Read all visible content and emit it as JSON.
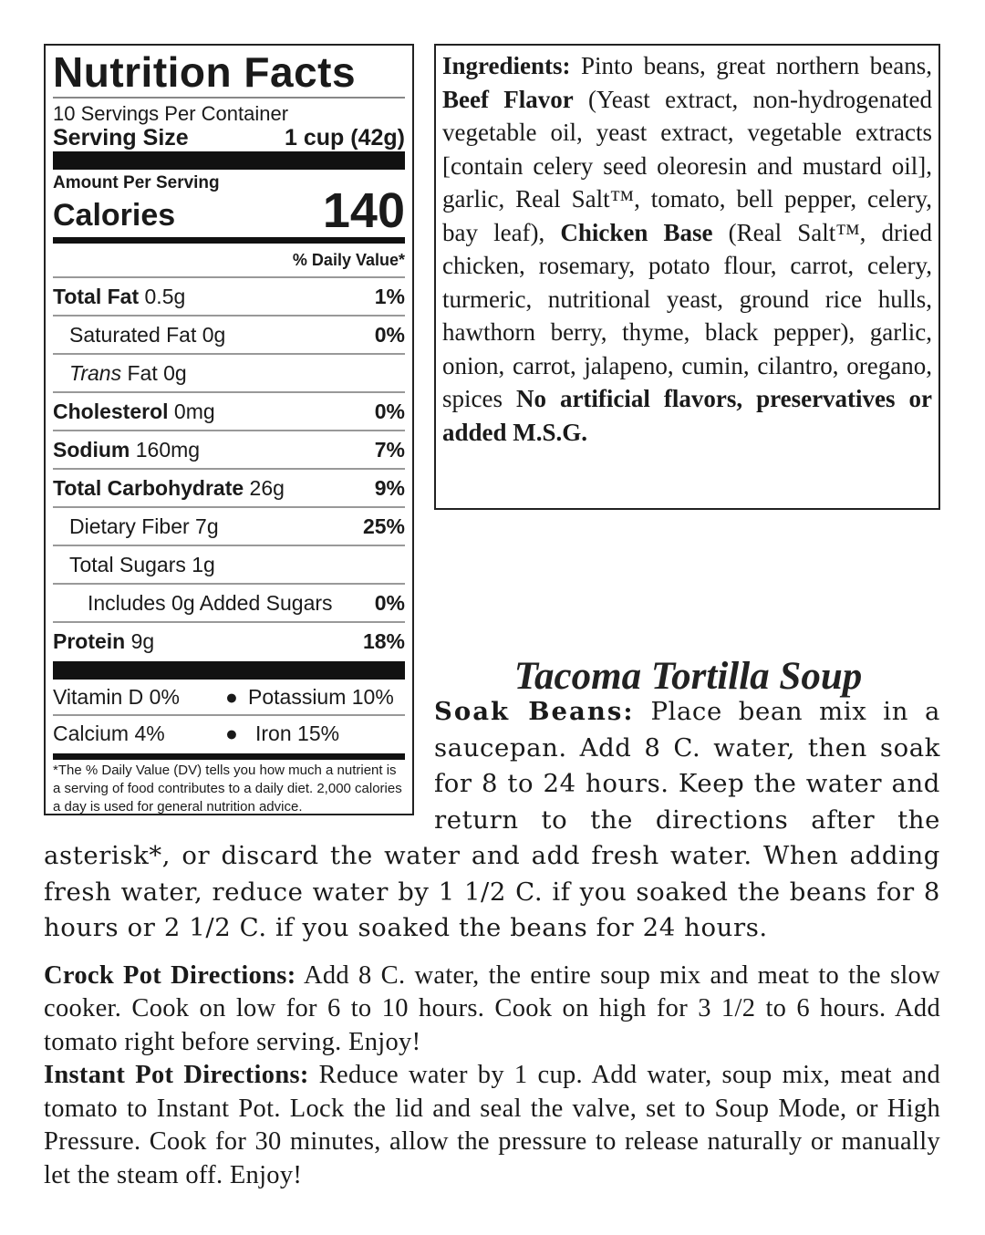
{
  "nutrition": {
    "title": "Nutrition Facts",
    "servings": "10 Servings Per Container",
    "serving_size_label": "Serving Size",
    "serving_size_value": "1 cup (42g)",
    "amount_per_serving": "Amount Per Serving",
    "calories_label": "Calories",
    "calories_value": "140",
    "dv_header": "% Daily Value*",
    "rows": [
      {
        "label": "Total Fat",
        "amount": "0.5g",
        "dv": "1%"
      },
      {
        "label": "Saturated Fat",
        "amount": "0g",
        "dv": "0%"
      },
      {
        "label": "Trans",
        "label2": " Fat",
        "amount": "0g",
        "dv": ""
      },
      {
        "label": "Cholesterol",
        "amount": "0mg",
        "dv": "0%"
      },
      {
        "label": "Sodium",
        "amount": "160mg",
        "dv": "7%"
      },
      {
        "label": "Total Carbohydrate",
        "amount": "26g",
        "dv": "9%"
      },
      {
        "label": "Dietary Fiber",
        "amount": "7g",
        "dv": "25%"
      },
      {
        "label": "Total Sugars",
        "amount": "1g",
        "dv": ""
      },
      {
        "label": "Includes 0g Added Sugars",
        "amount": "",
        "dv": "0%"
      },
      {
        "label": "Protein",
        "amount": "9g",
        "dv": "18%"
      }
    ],
    "vitamins": [
      {
        "left": "Vitamin D 0%",
        "right": "Potassium 10%"
      },
      {
        "left": "Calcium 4%",
        "right": "Iron 15%"
      }
    ],
    "footnote": "*The % Daily Value (DV) tells you how much a nutrient is a serving of food contributes to a daily diet. 2,000 calories a day is used for general nutrition advice."
  },
  "ingredients": [
    {
      "bold": "Ingredients:",
      "text": " Pinto beans, great northern beans, "
    },
    {
      "bold": "Beef Flavor",
      "text": " (Yeast extract, non-hydrogenated vegetable oil, yeast extract, vegetable extracts [contain celery seed oleoresin and mustard oil], garlic, Real Salt™, tomato, bell pepper, celery, bay leaf), "
    },
    {
      "bold": "Chicken Base",
      "text": " (Real Salt™, dried chicken, rosemary, potato flour, carrot, celery, turmeric, nutritional yeast, ground rice hulls, hawthorn berry, thyme, black pepper), garlic, onion, carrot, jalapeno, cumin, cilantro, oregano, spices "
    },
    {
      "bold": "No artificial flavors, preservatives or added M.S.G.",
      "text": ""
    }
  ],
  "recipe": {
    "title": "Tacoma Tortilla Soup",
    "soak_label": "Soak Beans:",
    "soak_text": " Place bean mix in a saucepan. Add 8 C. water, then soak for 8 to 24 hours. Keep the water and return to the directions after the asterisk*, or discard the water and add fresh water. When adding fresh water, reduce water by 1 1/2 C. if you soaked the beans for 8 hours or 2 1/2 C. if you soaked the beans for 24 hours.",
    "crock_label": "Crock Pot Directions:",
    "crock_text": " Add 8 C. water, the entire soup mix and meat to the slow cooker.  Cook on low for 6 to 10 hours. Cook on high for 3 1/2 to 6 hours. Add tomato right before serving. Enjoy!",
    "instant_label": "Instant Pot Directions:",
    "instant_text": " Reduce water by 1 cup. Add water, soup mix, meat and tomato to Instant Pot. Lock the lid and seal the valve, set to Soup Mode, or High Pressure. Cook for 30 minutes, allow the pressure to release naturally or manually let the steam off. Enjoy!"
  }
}
